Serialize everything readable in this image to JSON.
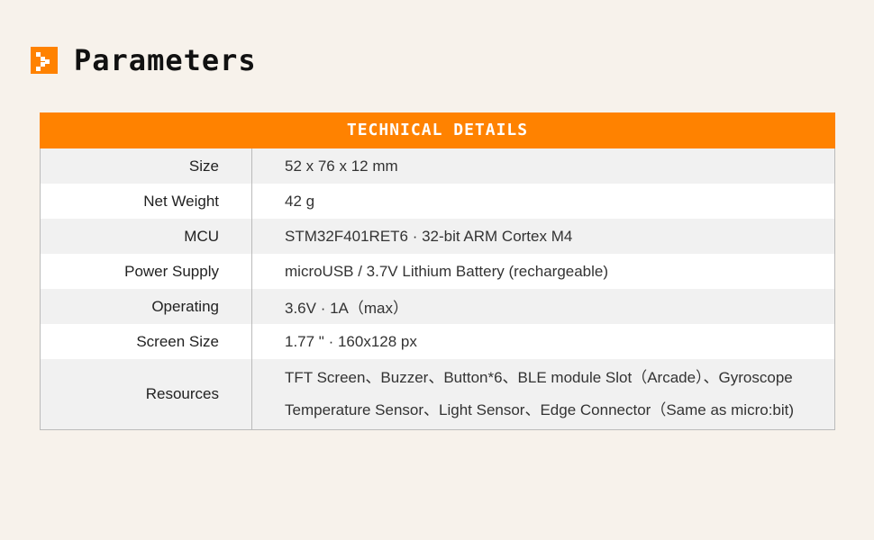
{
  "title": "Parameters",
  "colors": {
    "accent": "#ff8200",
    "background": "#f7f2eb"
  },
  "icon": "pixel-chevron-right-icon",
  "table": {
    "header": "TECHNICAL DETAILS",
    "rows": [
      {
        "label": "Size",
        "value": [
          "52 x 76 x 12 mm"
        ]
      },
      {
        "label": "Net Weight",
        "value": [
          "42 g"
        ]
      },
      {
        "label": "MCU",
        "value": [
          "STM32F401RET6  ·  32-bit ARM Cortex M4"
        ]
      },
      {
        "label": "Power Supply",
        "value": [
          "microUSB / 3.7V Lithium Battery (rechargeable)"
        ]
      },
      {
        "label": "Operating",
        "value": [
          "3.6V  ·  1A（max）"
        ]
      },
      {
        "label": "Screen Size",
        "value": [
          "1.77 \"  ·  160x128 px"
        ]
      },
      {
        "label": "Resources",
        "value": [
          "TFT Screen、Buzzer、Button*6、BLE module Slot（Arcade）、Gyroscope",
          "Temperature Sensor、Light Sensor、Edge Connector（Same as micro:bit)"
        ]
      }
    ]
  }
}
